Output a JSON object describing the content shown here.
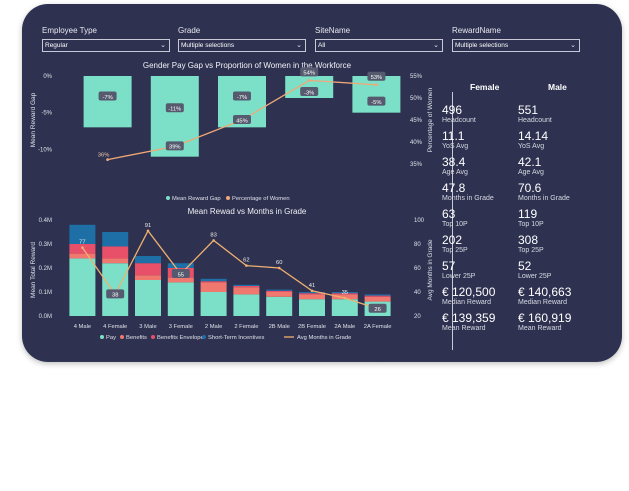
{
  "filters": [
    {
      "label": "Employee Type",
      "value": "Regular"
    },
    {
      "label": "Grade",
      "value": "Multiple selections"
    },
    {
      "label": "SiteName",
      "value": "All"
    },
    {
      "label": "RewardName",
      "value": "Multiple selections"
    }
  ],
  "icons": {
    "dropdown": "chevron-down-icon"
  },
  "colors": {
    "background": "#2e3250",
    "pay": "#7ce0c8",
    "benefits": "#f1786e",
    "benefits_envelope": "#e8506a",
    "sti": "#1d6fa6",
    "line": "#f0b070",
    "pct_line": "#f0a878",
    "gap_bar": "#7ce0c8"
  },
  "kpis": {
    "female_header": "Female",
    "male_header": "Male",
    "items": [
      {
        "label": "Headcount",
        "female": "496",
        "male": "551"
      },
      {
        "label": "YoS Avg",
        "female": "11.1",
        "male": "14.14"
      },
      {
        "label": "Age Avg",
        "female": "38.4",
        "male": "42.1"
      },
      {
        "label": "Months in Grade",
        "female": "47.8",
        "male": "70.6"
      },
      {
        "label": "Top 10P",
        "female": "63",
        "male": "119"
      },
      {
        "label": "Top 25P",
        "female": "202",
        "male": "308"
      },
      {
        "label": "Lower 25P",
        "female": "57",
        "male": "52"
      },
      {
        "label": "Median Reward",
        "female": "€ 120,500",
        "male": "€ 140,663"
      },
      {
        "label": "Mean Reward",
        "female": "€ 139,359",
        "male": "€ 160,919"
      }
    ]
  },
  "chart_data": [
    {
      "type": "bar",
      "title": "Gender Pay Gap vs Proportion of Women in the Workforce",
      "ylabel": "Mean Reward Gap",
      "y2label": "Percentage of Women",
      "ylim": [
        -12,
        0
      ],
      "y2lim": [
        35,
        55
      ],
      "yticks": [
        "0%",
        "-5%",
        "-10%"
      ],
      "y2ticks": [
        "55%",
        "50%",
        "45%",
        "40%",
        "35%"
      ],
      "series": [
        {
          "name": "Mean Reward Gap",
          "values": [
            -7,
            -11,
            -7,
            -3,
            -5
          ],
          "labels": [
            "-7%",
            "-11%",
            "-7%",
            "-3%",
            "-5%"
          ]
        },
        {
          "name": "Percentage of Women",
          "values": [
            36,
            39,
            45,
            54,
            53
          ],
          "labels": [
            "36%",
            "39%",
            "45%",
            "54%",
            "53%"
          ]
        }
      ],
      "legend": [
        "Mean Reward Gap",
        "Percentage of Women"
      ]
    },
    {
      "type": "bar",
      "title": "Mean Rewad vs Months in Grade",
      "ylabel": "Mean Total Reward",
      "y2label": "Avg Months in Grade",
      "ylim": [
        0,
        0.4
      ],
      "y2lim": [
        20,
        100
      ],
      "yticks": [
        "0.4M",
        "0.3M",
        "0.2M",
        "0.1M",
        "0.0M"
      ],
      "y2ticks": [
        "100",
        "80",
        "60",
        "40",
        "20"
      ],
      "categories": [
        "4 Male",
        "4 Female",
        "3 Male",
        "3 Female",
        "2 Male",
        "2 Female",
        "2B Male",
        "2B Female",
        "2A Male",
        "2A Female"
      ],
      "series": [
        {
          "name": "Pay",
          "values": [
            0.24,
            0.22,
            0.15,
            0.14,
            0.1,
            0.09,
            0.08,
            0.07,
            0.07,
            0.06
          ]
        },
        {
          "name": "Benefits",
          "values": [
            0.02,
            0.02,
            0.02,
            0.02,
            0.04,
            0.03,
            0.02,
            0.02,
            0.02,
            0.02
          ]
        },
        {
          "name": "Benefits Envelope",
          "values": [
            0.04,
            0.05,
            0.05,
            0.04,
            0.005,
            0.005,
            0.005,
            0.005,
            0.005,
            0.005
          ]
        },
        {
          "name": "Short-Term Incentives",
          "values": [
            0.08,
            0.06,
            0.03,
            0.02,
            0.01,
            0.005,
            0.005,
            0.005,
            0.005,
            0.005
          ]
        },
        {
          "name": "Avg Months in Grade",
          "values": [
            77,
            38,
            91,
            55,
            83,
            62,
            60,
            41,
            35,
            26
          ],
          "labels": [
            "77",
            "38",
            "91",
            "55",
            "83",
            "62",
            "60",
            "41",
            "35",
            "26"
          ]
        }
      ],
      "legend": [
        "Pay",
        "Benefits",
        "Benefits Envelope",
        "Short-Term Incentives",
        "Avg Months in Grade"
      ]
    }
  ]
}
